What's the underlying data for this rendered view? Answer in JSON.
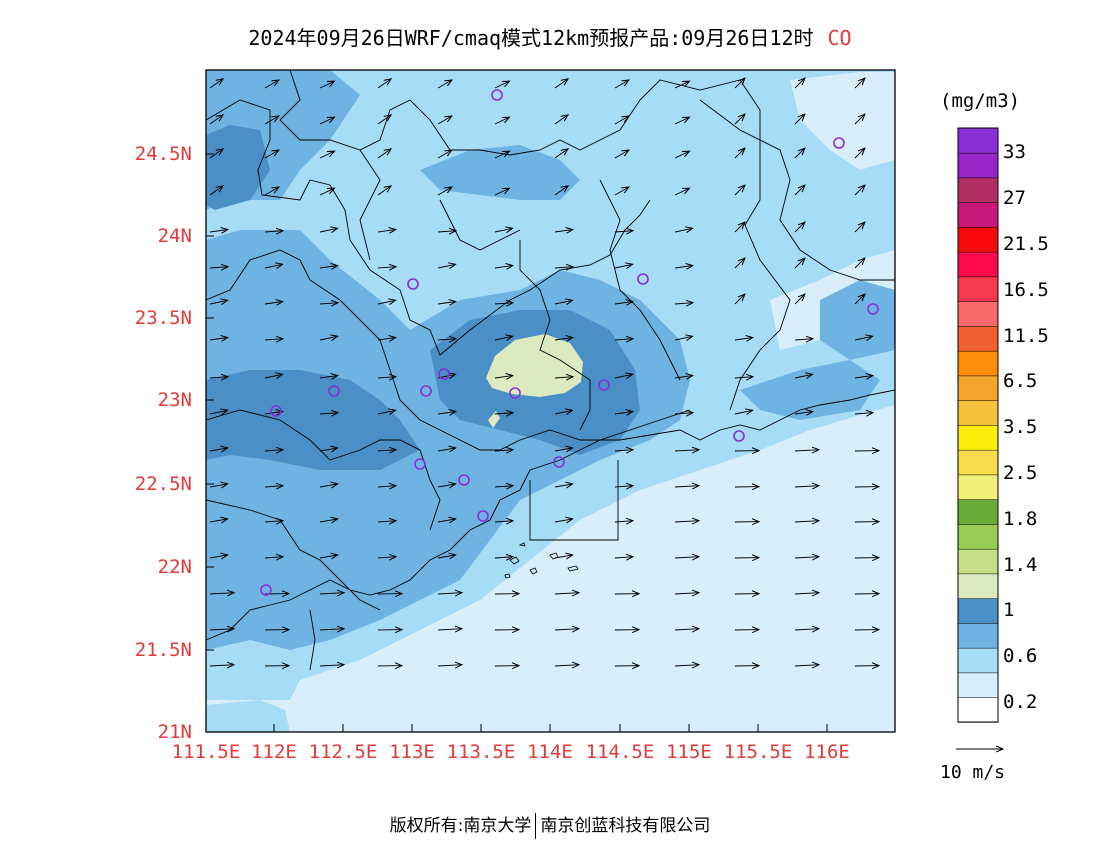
{
  "title": {
    "main": "2024年09月26日WRF/cmaq模式12km预报产品:09月26日12时",
    "species": "CO"
  },
  "axes": {
    "lat_labels": [
      "24.5N",
      "24N",
      "23.5N",
      "23N",
      "22.5N",
      "22N",
      "21.5N",
      "21N"
    ],
    "lon_labels": [
      "111.5E",
      "112E",
      "112.5E",
      "113E",
      "113.5E",
      "114E",
      "114.5E",
      "115E",
      "115.5E",
      "116E"
    ]
  },
  "colorbar": {
    "unit": "(mg/m3)",
    "labels": [
      "33",
      "27",
      "21.5",
      "16.5",
      "11.5",
      "6.5",
      "3.5",
      "2.5",
      "1.8",
      "1.4",
      "1",
      "0.6",
      "0.2"
    ],
    "colors": [
      "#ffffff",
      "#d8eefb",
      "#a6dcf6",
      "#6fb3e3",
      "#4a8fc6",
      "#dde9c0",
      "#c6df86",
      "#98cb56",
      "#6aaa38",
      "#f0f078",
      "#f6dc4e",
      "#fcef0c",
      "#f6c23e",
      "#f3a42a",
      "#fb8c0c",
      "#f16030",
      "#fb6a6a",
      "#f53a50",
      "#fb0a4e",
      "#f90a0a",
      "#c8187a",
      "#b22e62",
      "#9626c6",
      "#8a2ed6"
    ]
  },
  "wind_key": {
    "label": "10 m/s"
  },
  "copyright": {
    "left": "版权所有:南京大学",
    "right": "南京创蓝科技有限公司"
  }
}
